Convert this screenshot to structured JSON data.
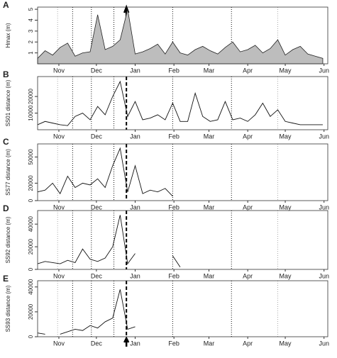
{
  "chart_data": [
    {
      "type": "area",
      "panel": "A",
      "ylabel": "Hmax (m)",
      "color": "#bdbdbd",
      "x": [
        0,
        6,
        12,
        18,
        24,
        30,
        36,
        42,
        48,
        54,
        60,
        66,
        72,
        78,
        84,
        90,
        96,
        102,
        108,
        114,
        120,
        126,
        132,
        138,
        144,
        150,
        156,
        162,
        168,
        174,
        180,
        186,
        192,
        198,
        204,
        210,
        216,
        222,
        228
      ],
      "values": [
        0.5,
        1.2,
        0.8,
        1.5,
        1.9,
        0.7,
        1.0,
        1.1,
        4.5,
        1.3,
        1.6,
        2.2,
        5.0,
        0.9,
        1.1,
        1.4,
        1.8,
        0.9,
        2.0,
        1.0,
        0.8,
        1.3,
        1.6,
        1.2,
        0.9,
        1.5,
        2.0,
        1.1,
        1.3,
        1.7,
        1.0,
        1.4,
        2.2,
        0.8,
        1.3,
        1.6,
        0.9,
        0.7,
        0.5
      ],
      "xlim": [
        0,
        232
      ],
      "ylim": [
        0,
        5.2
      ],
      "yticks": [
        1,
        2,
        3,
        4,
        5
      ],
      "xticks": [
        {
          "value": 17,
          "label": "Nov"
        },
        {
          "value": 47,
          "label": "Dec"
        },
        {
          "value": 78,
          "label": "Jan"
        },
        {
          "value": 109,
          "label": "Feb"
        },
        {
          "value": 137,
          "label": "Mar"
        },
        {
          "value": 168,
          "label": "Apr"
        },
        {
          "value": 198,
          "label": "May"
        },
        {
          "value": 229,
          "label": "Jun"
        }
      ],
      "markers": [
        {
          "x": 16,
          "style": "gray"
        },
        {
          "x": 28,
          "style": "dotted"
        },
        {
          "x": 43,
          "style": "dotted"
        },
        {
          "x": 61,
          "style": "dotted"
        },
        {
          "x": 71,
          "style": "arrow"
        },
        {
          "x": 108,
          "style": "dotted"
        },
        {
          "x": 155,
          "style": "dotted"
        },
        {
          "x": 192,
          "style": "gray"
        }
      ]
    },
    {
      "type": "line",
      "panel": "B",
      "ylabel": "SS01 distance (m)",
      "color": "#111",
      "x": [
        0,
        6,
        12,
        18,
        24,
        30,
        36,
        42,
        48,
        54,
        60,
        66,
        72,
        78,
        84,
        90,
        96,
        102,
        108,
        114,
        120,
        126,
        132,
        138,
        144,
        150,
        156,
        162,
        168,
        174,
        180,
        186,
        192,
        198,
        204,
        210,
        216,
        222,
        228
      ],
      "values": [
        3000,
        5000,
        4000,
        3000,
        2500,
        8000,
        10000,
        6000,
        14000,
        9000,
        20000,
        29000,
        8000,
        17000,
        6000,
        7000,
        9000,
        6000,
        16000,
        5000,
        5000,
        22000,
        8000,
        5000,
        6000,
        17000,
        6000,
        7000,
        5000,
        9000,
        16000,
        8000,
        12000,
        5000,
        4000,
        3000,
        3000,
        3000,
        3000
      ],
      "xlim": [
        0,
        232
      ],
      "ylim": [
        0,
        32000
      ],
      "yticks": [
        10000,
        20000
      ],
      "xticks": [
        {
          "value": 17,
          "label": "Nov"
        },
        {
          "value": 47,
          "label": "Dec"
        },
        {
          "value": 78,
          "label": "Jan"
        },
        {
          "value": 109,
          "label": "Feb"
        },
        {
          "value": 137,
          "label": "Mar"
        },
        {
          "value": 168,
          "label": "Apr"
        },
        {
          "value": 198,
          "label": "May"
        },
        {
          "value": 229,
          "label": "Jun"
        }
      ],
      "markers": [
        {
          "x": 16,
          "style": "gray"
        },
        {
          "x": 28,
          "style": "dotted"
        },
        {
          "x": 43,
          "style": "dotted"
        },
        {
          "x": 61,
          "style": "dotted"
        },
        {
          "x": 71,
          "style": "dashed"
        },
        {
          "x": 108,
          "style": "dotted"
        },
        {
          "x": 155,
          "style": "dotted"
        },
        {
          "x": 192,
          "style": "gray"
        }
      ]
    },
    {
      "type": "line",
      "panel": "C",
      "ylabel": "SS77 distance (m)",
      "color": "#111",
      "x": [
        0,
        6,
        12,
        18,
        24,
        30,
        36,
        42,
        48,
        54,
        60,
        66,
        72,
        78,
        84,
        90,
        96,
        102,
        108,
        114,
        120,
        126,
        132,
        138,
        144,
        150,
        156,
        162,
        168,
        174,
        180,
        186,
        192,
        198,
        204,
        210,
        216,
        222,
        228
      ],
      "values": [
        10000,
        12000,
        20000,
        8000,
        28000,
        15000,
        20000,
        18000,
        25000,
        15000,
        40000,
        60000,
        10000,
        40000,
        8000,
        12000,
        10000,
        14000,
        5000,
        null,
        null,
        null,
        null,
        null,
        null,
        null,
        null,
        null,
        null,
        null,
        null,
        null,
        null,
        null,
        null,
        null,
        null,
        null,
        null
      ],
      "xlim": [
        0,
        232
      ],
      "ylim": [
        0,
        65000
      ],
      "yticks": [
        0,
        20000,
        50000
      ],
      "xticks": [
        {
          "value": 17,
          "label": "Nov"
        },
        {
          "value": 47,
          "label": "Dec"
        },
        {
          "value": 78,
          "label": "Jan"
        },
        {
          "value": 109,
          "label": "Feb"
        },
        {
          "value": 137,
          "label": "Mar"
        },
        {
          "value": 168,
          "label": "Apr"
        },
        {
          "value": 198,
          "label": "May"
        },
        {
          "value": 229,
          "label": "Jun"
        }
      ],
      "markers": [
        {
          "x": 16,
          "style": "gray"
        },
        {
          "x": 28,
          "style": "dotted"
        },
        {
          "x": 43,
          "style": "dotted"
        },
        {
          "x": 61,
          "style": "dotted"
        },
        {
          "x": 71,
          "style": "dashed"
        },
        {
          "x": 108,
          "style": "dotted"
        },
        {
          "x": 155,
          "style": "dotted"
        },
        {
          "x": 192,
          "style": "gray"
        }
      ]
    },
    {
      "type": "line",
      "panel": "D",
      "ylabel": "SS92 distance (m)",
      "color": "#111",
      "x": [
        0,
        6,
        12,
        18,
        24,
        30,
        36,
        42,
        48,
        54,
        60,
        66,
        72,
        78,
        84,
        90,
        96,
        102,
        108,
        114,
        120,
        126,
        132,
        138,
        144,
        150,
        156,
        162,
        168,
        174,
        180,
        186,
        192,
        198,
        204,
        210,
        216,
        222,
        228
      ],
      "values": [
        5000,
        7000,
        6000,
        5000,
        8000,
        6000,
        18000,
        9000,
        7000,
        10000,
        20000,
        48000,
        5000,
        14000,
        null,
        null,
        null,
        null,
        12000,
        2000,
        null,
        null,
        null,
        null,
        null,
        null,
        null,
        null,
        null,
        null,
        null,
        null,
        null,
        null,
        null,
        null,
        null,
        null,
        null
      ],
      "xlim": [
        0,
        232
      ],
      "ylim": [
        0,
        52000
      ],
      "yticks": [
        0,
        20000,
        40000
      ],
      "xticks": [
        {
          "value": 17,
          "label": "Nov"
        },
        {
          "value": 47,
          "label": "Dec"
        },
        {
          "value": 78,
          "label": "Jan"
        },
        {
          "value": 109,
          "label": "Feb"
        },
        {
          "value": 137,
          "label": "Mar"
        },
        {
          "value": 168,
          "label": "Apr"
        },
        {
          "value": 198,
          "label": "May"
        },
        {
          "value": 229,
          "label": "Jun"
        }
      ],
      "markers": [
        {
          "x": 16,
          "style": "gray"
        },
        {
          "x": 28,
          "style": "dotted"
        },
        {
          "x": 43,
          "style": "dotted"
        },
        {
          "x": 61,
          "style": "dotted"
        },
        {
          "x": 71,
          "style": "dashed"
        },
        {
          "x": 108,
          "style": "dotted"
        },
        {
          "x": 155,
          "style": "dotted"
        },
        {
          "x": 192,
          "style": "gray"
        }
      ]
    },
    {
      "type": "line",
      "panel": "E",
      "ylabel": "SS93 distance (m)",
      "color": "#111",
      "x": [
        0,
        6,
        12,
        18,
        24,
        30,
        36,
        42,
        48,
        54,
        60,
        66,
        72,
        78,
        84,
        90,
        96,
        102,
        108,
        114,
        120,
        126,
        132,
        138,
        144,
        150,
        156,
        162,
        168,
        174,
        180,
        186,
        192,
        198,
        204,
        210,
        216,
        222,
        228
      ],
      "values": [
        3000,
        2000,
        null,
        2000,
        4000,
        6000,
        5000,
        9000,
        7000,
        12000,
        15000,
        38000,
        6000,
        8000,
        null,
        null,
        null,
        null,
        null,
        null,
        null,
        null,
        null,
        null,
        null,
        null,
        null,
        null,
        null,
        null,
        null,
        null,
        null,
        null,
        null,
        null,
        null,
        null,
        null
      ],
      "xlim": [
        0,
        232
      ],
      "ylim": [
        0,
        45000
      ],
      "yticks": [
        0,
        20000,
        40000
      ],
      "xticks": [
        {
          "value": 17,
          "label": "Nov"
        },
        {
          "value": 47,
          "label": "Dec"
        },
        {
          "value": 78,
          "label": "Jan"
        },
        {
          "value": 109,
          "label": "Feb"
        },
        {
          "value": 137,
          "label": "Mar"
        },
        {
          "value": 168,
          "label": "Apr"
        },
        {
          "value": 198,
          "label": "May"
        },
        {
          "value": 229,
          "label": "Jun"
        }
      ],
      "markers": [
        {
          "x": 16,
          "style": "gray"
        },
        {
          "x": 28,
          "style": "dotted"
        },
        {
          "x": 43,
          "style": "dotted"
        },
        {
          "x": 61,
          "style": "dotted"
        },
        {
          "x": 71,
          "style": "dashed"
        },
        {
          "x": 71,
          "style": "arrow"
        },
        {
          "x": 108,
          "style": "dotted"
        },
        {
          "x": 155,
          "style": "dotted"
        },
        {
          "x": 192,
          "style": "gray"
        }
      ]
    }
  ]
}
